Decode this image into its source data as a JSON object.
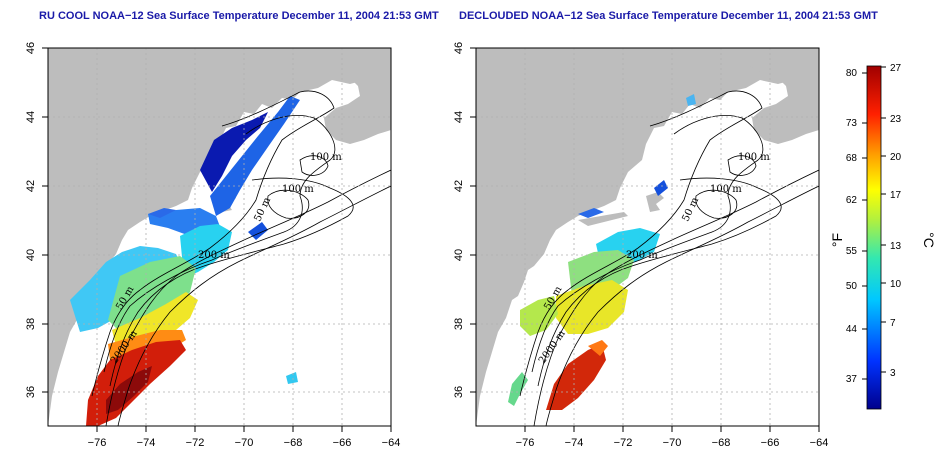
{
  "maps": [
    {
      "title": "RU COOL NOAA−12 Sea Surface Temperature December 11, 2004 21:53 GMT",
      "contour_labels": [
        "100 m",
        "100 m",
        "50 m",
        "200 m",
        "50 m",
        "2000 m"
      ]
    },
    {
      "title": "DECLOUDED NOAA−12 Sea Surface Temperature December 11, 2004 21:53 GMT",
      "contour_labels": [
        "100 m",
        "100 m",
        "50 m",
        "200 m",
        "50 m",
        "2000 m"
      ]
    }
  ],
  "axes": {
    "x_ticks": [
      "−76",
      "−74",
      "−72",
      "−70",
      "−68",
      "−66",
      "−64"
    ],
    "y_ticks": [
      "36",
      "38",
      "40",
      "42",
      "44",
      "46"
    ],
    "lon_range": [
      -77.0,
      -63.0
    ],
    "lat_range": [
      35.0,
      46.0
    ],
    "grid": "dotted"
  },
  "colorbar": {
    "fahrenheit_label": "°F",
    "celsius_label": "°C",
    "fahrenheit_ticks": [
      "80",
      "73",
      "68",
      "62",
      "55",
      "50",
      "44",
      "37"
    ],
    "celsius_ticks": [
      "27",
      "23",
      "20",
      "17",
      "13",
      "10",
      "7",
      "3"
    ],
    "celsius_range": [
      0,
      27
    ]
  },
  "colors": {
    "land": "#bdbdbd",
    "cold": "#0000a0",
    "warm": "#a00000",
    "title": "#1a1aa8"
  }
}
